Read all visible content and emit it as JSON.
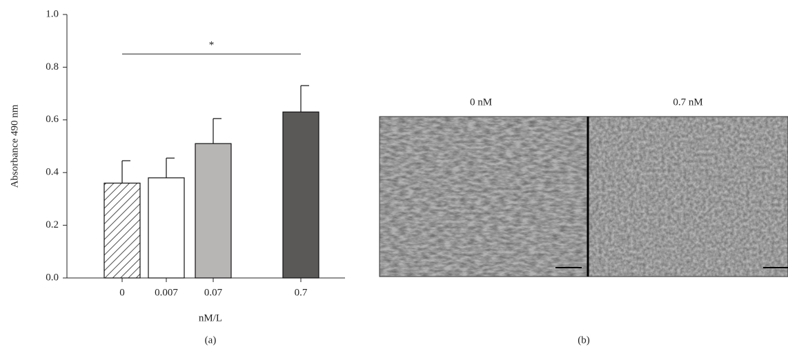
{
  "chart_data": {
    "type": "bar",
    "y_label": "Absorbance 490 nm",
    "x_label": "nM/L",
    "categories": [
      "0",
      "0.007",
      "0.07",
      "0.7"
    ],
    "values": [
      0.36,
      0.38,
      0.51,
      0.63
    ],
    "errors": [
      0.085,
      0.075,
      0.095,
      0.1
    ],
    "colors": [
      "#ffffff",
      "#ffffff",
      "#b8b5b5",
      "#5b5858"
    ],
    "hatch": [
      true,
      false,
      false,
      false
    ],
    "ylim": [
      0,
      1
    ],
    "yticks": [
      {
        "value": 0,
        "label": "0.0"
      },
      0.2,
      0.4,
      0.6,
      0.8,
      {
        "value": 1,
        "label": "1.0"
      }
    ],
    "annotation": {
      "text": "*",
      "y": 0.85,
      "from": 0,
      "to": 3
    }
  },
  "panel_labels": [
    "(a)",
    "(b)"
  ],
  "images": [
    {
      "label": "0 nM"
    },
    {
      "label": "0.7 nM"
    }
  ]
}
